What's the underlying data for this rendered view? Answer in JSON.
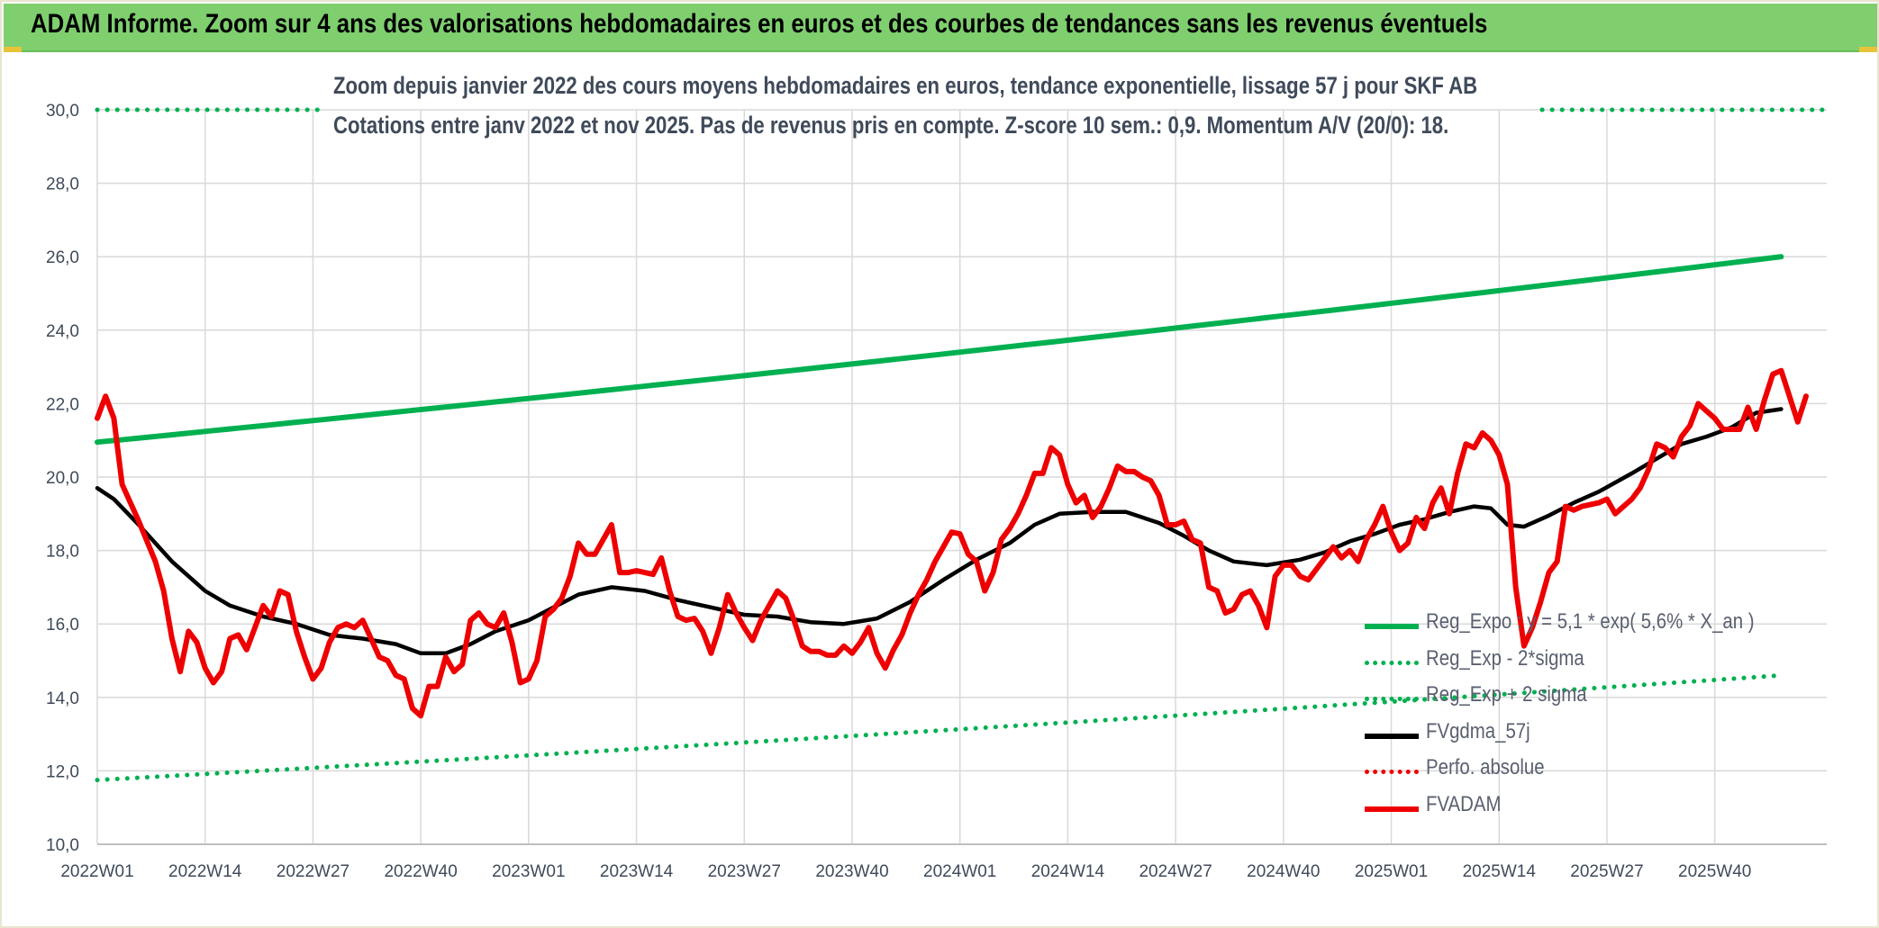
{
  "header": {
    "title": "ADAM Informe. Zoom sur 4 ans des valorisations hebdomadaires en euros et des courbes de tendances sans les revenus éventuels"
  },
  "chart_data": {
    "type": "line",
    "title": [
      "Zoom depuis janvier 2022 des cours moyens hebdomadaires en euros, tendance exponentielle, lissage 57 j pour SKF AB",
      "Cotations entre janv 2022 et nov 2025. Pas de revenus pris en compte. Z-score 10 sem.: 0,9. Momentum A/V (20/0): 18."
    ],
    "xlabel": "",
    "ylabel": "",
    "ylim": [
      10,
      30
    ],
    "x_range": [
      0,
      203
    ],
    "y_ticks": [
      "10,0",
      "12,0",
      "14,0",
      "16,0",
      "18,0",
      "20,0",
      "22,0",
      "24,0",
      "26,0",
      "28,0",
      "30,0"
    ],
    "x_ticks": [
      {
        "index": 0,
        "label": "2022W01"
      },
      {
        "index": 13,
        "label": "2022W14"
      },
      {
        "index": 26,
        "label": "2022W27"
      },
      {
        "index": 39,
        "label": "2022W40"
      },
      {
        "index": 52,
        "label": "2023W01"
      },
      {
        "index": 65,
        "label": "2023W14"
      },
      {
        "index": 78,
        "label": "2023W27"
      },
      {
        "index": 91,
        "label": "2023W40"
      },
      {
        "index": 104,
        "label": "2024W01"
      },
      {
        "index": 117,
        "label": "2024W14"
      },
      {
        "index": 130,
        "label": "2024W27"
      },
      {
        "index": 143,
        "label": "2024W40"
      },
      {
        "index": 156,
        "label": "2025W01"
      },
      {
        "index": 169,
        "label": "2025W14"
      },
      {
        "index": 182,
        "label": "2025W27"
      },
      {
        "index": 195,
        "label": "2025W40"
      }
    ],
    "colors": {
      "green": "#00b050",
      "black": "#000000",
      "red": "#ee0000",
      "grid": "#d9d9d9",
      "axis_text": "#3f4a5a"
    },
    "series": [
      {
        "name": "Reg_Expo : y = 5,1 * exp( 5,6% *  X_an )",
        "style": "solid",
        "color": "#00b050",
        "x": [
          0,
          203
        ],
        "y": [
          20.95,
          26.0
        ],
        "curve": "exponential"
      },
      {
        "name": "Reg_Exp - 2*sigma",
        "style": "dotted",
        "color": "#00b050",
        "x": [
          0,
          203
        ],
        "y": [
          11.75,
          14.6
        ],
        "curve": "exponential"
      },
      {
        "name": "Reg_Exp + 2 sigma",
        "style": "dotted",
        "color": "#00b050",
        "x": [
          0,
          203
        ],
        "y": [
          30.0,
          30.0
        ],
        "clipped": true
      },
      {
        "name": "FVgdma_57j",
        "style": "solid",
        "color": "#000000",
        "points": [
          [
            0,
            19.7
          ],
          [
            2,
            19.4
          ],
          [
            5,
            18.7
          ],
          [
            9,
            17.7
          ],
          [
            13,
            16.9
          ],
          [
            16,
            16.5
          ],
          [
            20,
            16.2
          ],
          [
            24,
            16.0
          ],
          [
            28,
            15.7
          ],
          [
            32,
            15.6
          ],
          [
            36,
            15.45
          ],
          [
            39,
            15.2
          ],
          [
            42,
            15.2
          ],
          [
            45,
            15.45
          ],
          [
            48,
            15.8
          ],
          [
            52,
            16.1
          ],
          [
            55,
            16.45
          ],
          [
            58,
            16.8
          ],
          [
            62,
            17.0
          ],
          [
            66,
            16.9
          ],
          [
            70,
            16.65
          ],
          [
            74,
            16.45
          ],
          [
            78,
            16.25
          ],
          [
            82,
            16.2
          ],
          [
            86,
            16.05
          ],
          [
            90,
            16.0
          ],
          [
            94,
            16.15
          ],
          [
            98,
            16.6
          ],
          [
            102,
            17.2
          ],
          [
            106,
            17.75
          ],
          [
            110,
            18.2
          ],
          [
            113,
            18.7
          ],
          [
            116,
            19.0
          ],
          [
            120,
            19.05
          ],
          [
            124,
            19.05
          ],
          [
            128,
            18.75
          ],
          [
            131,
            18.4
          ],
          [
            134,
            18.0
          ],
          [
            137,
            17.7
          ],
          [
            141,
            17.6
          ],
          [
            145,
            17.75
          ],
          [
            148,
            17.95
          ],
          [
            151,
            18.25
          ],
          [
            154,
            18.45
          ],
          [
            157,
            18.7
          ],
          [
            160,
            18.85
          ],
          [
            163,
            19.05
          ],
          [
            166,
            19.2
          ],
          [
            168,
            19.15
          ],
          [
            170,
            18.7
          ],
          [
            172,
            18.65
          ],
          [
            175,
            18.95
          ],
          [
            178,
            19.3
          ],
          [
            181,
            19.6
          ],
          [
            185,
            20.1
          ],
          [
            188,
            20.5
          ],
          [
            191,
            20.9
          ],
          [
            194,
            21.1
          ],
          [
            197,
            21.35
          ],
          [
            200,
            21.75
          ],
          [
            203,
            21.85
          ]
        ]
      },
      {
        "name": "Perfo. absolue",
        "style": "dotted",
        "color": "#ee0000",
        "points": []
      },
      {
        "name": "FVADAM",
        "style": "solid",
        "color": "#ee0000",
        "points": [
          [
            0,
            21.6
          ],
          [
            1,
            22.2
          ],
          [
            2,
            21.6
          ],
          [
            3,
            19.8
          ],
          [
            5,
            18.8
          ],
          [
            7,
            17.7
          ],
          [
            8,
            16.9
          ],
          [
            9,
            15.6
          ],
          [
            10,
            14.7
          ],
          [
            11,
            15.8
          ],
          [
            12,
            15.5
          ],
          [
            13,
            14.8
          ],
          [
            14,
            14.4
          ],
          [
            15,
            14.7
          ],
          [
            16,
            15.6
          ],
          [
            17,
            15.7
          ],
          [
            18,
            15.3
          ],
          [
            19,
            15.9
          ],
          [
            20,
            16.5
          ],
          [
            21,
            16.2
          ],
          [
            22,
            16.9
          ],
          [
            23,
            16.8
          ],
          [
            24,
            15.8
          ],
          [
            25,
            15.1
          ],
          [
            26,
            14.5
          ],
          [
            27,
            14.8
          ],
          [
            28,
            15.5
          ],
          [
            29,
            15.9
          ],
          [
            30,
            16.0
          ],
          [
            31,
            15.9
          ],
          [
            32,
            16.1
          ],
          [
            33,
            15.6
          ],
          [
            34,
            15.1
          ],
          [
            35,
            15.0
          ],
          [
            36,
            14.6
          ],
          [
            37,
            14.5
          ],
          [
            38,
            13.7
          ],
          [
            39,
            13.5
          ],
          [
            40,
            14.3
          ],
          [
            41,
            14.3
          ],
          [
            42,
            15.1
          ],
          [
            43,
            14.7
          ],
          [
            44,
            14.9
          ],
          [
            45,
            16.1
          ],
          [
            46,
            16.3
          ],
          [
            47,
            16.0
          ],
          [
            48,
            15.9
          ],
          [
            49,
            16.3
          ],
          [
            50,
            15.5
          ],
          [
            51,
            14.4
          ],
          [
            52,
            14.5
          ],
          [
            53,
            15.0
          ],
          [
            54,
            16.2
          ],
          [
            55,
            16.4
          ],
          [
            56,
            16.7
          ],
          [
            57,
            17.3
          ],
          [
            58,
            18.2
          ],
          [
            59,
            17.9
          ],
          [
            60,
            17.9
          ],
          [
            61,
            18.3
          ],
          [
            62,
            18.7
          ],
          [
            63,
            17.4
          ],
          [
            64,
            17.4
          ],
          [
            65,
            17.45
          ],
          [
            66,
            17.4
          ],
          [
            67,
            17.35
          ],
          [
            68,
            17.8
          ],
          [
            69,
            16.9
          ],
          [
            70,
            16.2
          ],
          [
            71,
            16.1
          ],
          [
            72,
            16.15
          ],
          [
            73,
            15.8
          ],
          [
            74,
            15.2
          ],
          [
            75,
            15.9
          ],
          [
            76,
            16.8
          ],
          [
            77,
            16.3
          ],
          [
            78,
            15.9
          ],
          [
            79,
            15.55
          ],
          [
            80,
            16.1
          ],
          [
            81,
            16.5
          ],
          [
            82,
            16.9
          ],
          [
            83,
            16.7
          ],
          [
            84,
            16.1
          ],
          [
            85,
            15.4
          ],
          [
            86,
            15.25
          ],
          [
            87,
            15.25
          ],
          [
            88,
            15.15
          ],
          [
            89,
            15.15
          ],
          [
            90,
            15.4
          ],
          [
            91,
            15.2
          ],
          [
            92,
            15.5
          ],
          [
            93,
            15.9
          ],
          [
            94,
            15.2
          ],
          [
            95,
            14.8
          ],
          [
            96,
            15.3
          ],
          [
            97,
            15.7
          ],
          [
            98,
            16.3
          ],
          [
            99,
            16.8
          ],
          [
            100,
            17.2
          ],
          [
            101,
            17.7
          ],
          [
            102,
            18.1
          ],
          [
            103,
            18.5
          ],
          [
            104,
            18.45
          ],
          [
            105,
            17.9
          ],
          [
            106,
            17.7
          ],
          [
            107,
            16.9
          ],
          [
            108,
            17.4
          ],
          [
            109,
            18.3
          ],
          [
            110,
            18.6
          ],
          [
            111,
            19.0
          ],
          [
            112,
            19.5
          ],
          [
            113,
            20.1
          ],
          [
            114,
            20.1
          ],
          [
            115,
            20.8
          ],
          [
            116,
            20.6
          ],
          [
            117,
            19.8
          ],
          [
            118,
            19.3
          ],
          [
            119,
            19.5
          ],
          [
            120,
            18.9
          ],
          [
            121,
            19.2
          ],
          [
            122,
            19.7
          ],
          [
            123,
            20.3
          ],
          [
            124,
            20.15
          ],
          [
            125,
            20.15
          ],
          [
            126,
            20.0
          ],
          [
            127,
            19.9
          ],
          [
            128,
            19.5
          ],
          [
            129,
            18.7
          ],
          [
            130,
            18.7
          ],
          [
            131,
            18.8
          ],
          [
            132,
            18.3
          ],
          [
            133,
            18.2
          ],
          [
            134,
            17.0
          ],
          [
            135,
            16.9
          ],
          [
            136,
            16.3
          ],
          [
            137,
            16.4
          ],
          [
            138,
            16.8
          ],
          [
            139,
            16.9
          ],
          [
            140,
            16.5
          ],
          [
            141,
            15.9
          ],
          [
            142,
            17.3
          ],
          [
            143,
            17.6
          ],
          [
            144,
            17.6
          ],
          [
            145,
            17.3
          ],
          [
            146,
            17.2
          ],
          [
            147,
            17.5
          ],
          [
            148,
            17.8
          ],
          [
            149,
            18.1
          ],
          [
            150,
            17.8
          ],
          [
            151,
            18.0
          ],
          [
            152,
            17.7
          ],
          [
            153,
            18.3
          ],
          [
            154,
            18.7
          ],
          [
            155,
            19.2
          ],
          [
            156,
            18.5
          ],
          [
            157,
            18.0
          ],
          [
            158,
            18.2
          ],
          [
            159,
            18.9
          ],
          [
            160,
            18.6
          ],
          [
            161,
            19.3
          ],
          [
            162,
            19.7
          ],
          [
            163,
            19.0
          ],
          [
            164,
            20.1
          ],
          [
            165,
            20.9
          ],
          [
            166,
            20.8
          ],
          [
            167,
            21.2
          ],
          [
            168,
            21.0
          ],
          [
            169,
            20.6
          ],
          [
            170,
            19.8
          ],
          [
            171,
            17.0
          ],
          [
            172,
            15.4
          ],
          [
            173,
            15.9
          ],
          [
            174,
            16.6
          ],
          [
            175,
            17.4
          ],
          [
            176,
            17.7
          ],
          [
            177,
            19.2
          ],
          [
            178,
            19.1
          ],
          [
            179,
            19.2
          ],
          [
            180,
            19.25
          ],
          [
            181,
            19.3
          ],
          [
            182,
            19.4
          ],
          [
            183,
            19.0
          ],
          [
            184,
            19.2
          ],
          [
            185,
            19.4
          ],
          [
            186,
            19.7
          ],
          [
            187,
            20.2
          ],
          [
            188,
            20.9
          ],
          [
            189,
            20.8
          ],
          [
            190,
            20.55
          ],
          [
            191,
            21.1
          ],
          [
            192,
            21.4
          ],
          [
            193,
            22.0
          ],
          [
            194,
            21.8
          ],
          [
            195,
            21.6
          ],
          [
            196,
            21.3
          ],
          [
            197,
            21.3
          ],
          [
            198,
            21.3
          ],
          [
            199,
            21.9
          ],
          [
            200,
            21.3
          ],
          [
            201,
            22.1
          ],
          [
            202,
            22.8
          ],
          [
            203,
            22.9
          ],
          [
            204,
            22.2
          ],
          [
            205,
            21.5
          ],
          [
            206,
            22.2
          ]
        ]
      }
    ],
    "legend": [
      {
        "label": "Reg_Expo : y = 5,1 * exp( 5,6% *  X_an )",
        "style": "solid",
        "color": "#00b050"
      },
      {
        "label": "Reg_Exp - 2*sigma",
        "style": "dotted",
        "color": "#00b050"
      },
      {
        "label": "Reg_Exp + 2 sigma",
        "style": "dotted",
        "color": "#00b050"
      },
      {
        "label": "FVgdma_57j",
        "style": "solid",
        "color": "#000000"
      },
      {
        "label": "Perfo. absolue",
        "style": "dotted",
        "color": "#ee0000"
      },
      {
        "label": "FVADAM",
        "style": "solid",
        "color": "#ee0000"
      }
    ]
  }
}
